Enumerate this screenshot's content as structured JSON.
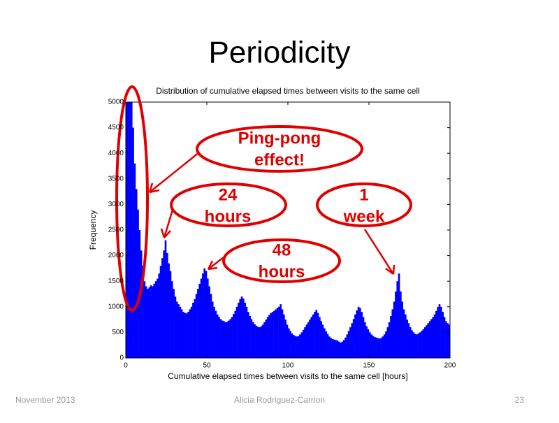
{
  "slide": {
    "title": "Periodicity",
    "footer": {
      "left": "November 2013",
      "center": "Alicia Rodriguez-Carrion",
      "right": "23"
    }
  },
  "annotations": [
    [
      "Ping-pong",
      "effect!"
    ],
    [
      "24",
      "hours"
    ],
    [
      "1",
      "week"
    ],
    [
      "48",
      "hours"
    ]
  ],
  "chart_data": {
    "type": "histogram",
    "title": "Distribution of cumulative elapsed times between visits to the same cell",
    "x_label": "Cumulative elapsed times between visits to the same cell [hours]",
    "y_label": "Frequency",
    "color": "#0000ff",
    "xlim": [
      0,
      200
    ],
    "xticks": [
      0,
      50,
      100,
      150,
      200
    ],
    "ylim": [
      0,
      5000
    ],
    "yticks": [
      0,
      500,
      1000,
      1500,
      2000,
      2500,
      3000,
      3500,
      4000,
      4500,
      5000
    ],
    "bins": [
      0,
      1,
      2,
      3,
      4,
      5,
      6,
      7,
      8,
      9,
      10,
      11,
      12,
      13,
      14,
      15,
      16,
      17,
      18,
      19,
      20,
      21,
      22,
      23,
      24,
      25,
      26,
      27,
      28,
      29,
      30,
      31,
      32,
      33,
      34,
      35,
      36,
      37,
      38,
      39,
      40,
      41,
      42,
      43,
      44,
      45,
      46,
      47,
      48,
      49,
      50,
      51,
      52,
      53,
      54,
      55,
      56,
      57,
      58,
      59,
      60,
      61,
      62,
      63,
      64,
      65,
      66,
      67,
      68,
      69,
      70,
      71,
      72,
      73,
      74,
      75,
      76,
      77,
      78,
      79,
      80,
      81,
      82,
      83,
      84,
      85,
      86,
      87,
      88,
      89,
      90,
      91,
      92,
      93,
      94,
      95,
      96,
      97,
      98,
      99,
      100,
      101,
      102,
      103,
      104,
      105,
      106,
      107,
      108,
      109,
      110,
      111,
      112,
      113,
      114,
      115,
      116,
      117,
      118,
      119,
      120,
      121,
      122,
      123,
      124,
      125,
      126,
      127,
      128,
      129,
      130,
      131,
      132,
      133,
      134,
      135,
      136,
      137,
      138,
      139,
      140,
      141,
      142,
      143,
      144,
      145,
      146,
      147,
      148,
      149,
      150,
      151,
      152,
      153,
      154,
      155,
      156,
      157,
      158,
      159,
      160,
      161,
      162,
      163,
      164,
      165,
      166,
      167,
      168,
      169,
      170,
      171,
      172,
      173,
      174,
      175,
      176,
      177,
      178,
      179,
      180,
      181,
      182,
      183,
      184,
      185,
      186,
      187,
      188,
      189,
      190,
      191,
      192,
      193,
      194,
      195,
      196,
      197,
      198,
      199,
      200
    ],
    "values": [
      5000,
      5000,
      5000,
      5000,
      4500,
      3800,
      3300,
      2900,
      2500,
      2100,
      1800,
      1500,
      1400,
      1350,
      1380,
      1420,
      1400,
      1450,
      1500,
      1550,
      1650,
      1800,
      1950,
      2100,
      2300,
      2050,
      1850,
      1700,
      1500,
      1350,
      1200,
      1100,
      1050,
      1000,
      950,
      900,
      880,
      870,
      900,
      950,
      1000,
      1080,
      1150,
      1250,
      1350,
      1450,
      1550,
      1650,
      1750,
      1700,
      1550,
      1400,
      1250,
      1100,
      1000,
      920,
      850,
      800,
      760,
      730,
      720,
      700,
      710,
      730,
      760,
      800,
      860,
      920,
      1000,
      1080,
      1150,
      1200,
      1160,
      1080,
      1000,
      900,
      820,
      760,
      700,
      660,
      630,
      610,
      600,
      620,
      650,
      700,
      750,
      800,
      840,
      880,
      900,
      920,
      950,
      980,
      1000,
      1050,
      950,
      850,
      750,
      650,
      580,
      530,
      480,
      450,
      430,
      420,
      430,
      460,
      500,
      550,
      600,
      650,
      700,
      750,
      800,
      850,
      900,
      940,
      880,
      800,
      720,
      650,
      580,
      520,
      470,
      420,
      390,
      370,
      360,
      350,
      340,
      320,
      300,
      320,
      350,
      400,
      460,
      530,
      600,
      680,
      760,
      850,
      930,
      1000,
      980,
      900,
      800,
      700,
      620,
      560,
      500,
      460,
      430,
      410,
      400,
      390,
      380,
      390,
      420,
      460,
      520,
      600,
      700,
      820,
      950,
      1100,
      1300,
      1500,
      1650,
      1300,
      1100,
      950,
      850,
      750,
      680,
      600,
      540,
      500,
      470,
      460,
      480,
      500,
      530,
      560,
      600,
      640,
      680,
      720,
      760,
      800,
      850,
      920,
      1000,
      1050,
      1000,
      900,
      800,
      720,
      680,
      650
    ]
  }
}
